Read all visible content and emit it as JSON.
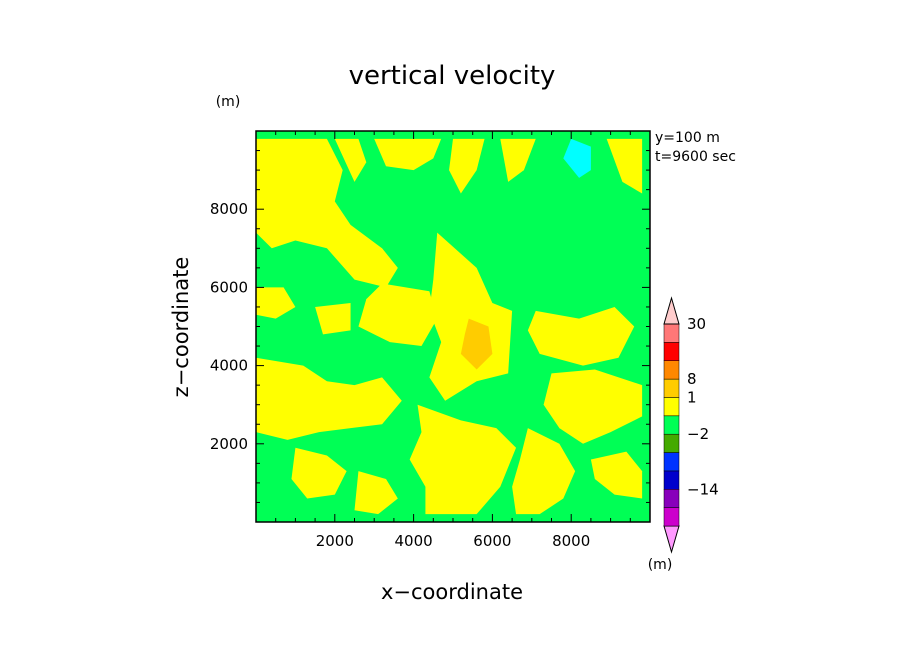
{
  "chart_data": {
    "type": "heatmap",
    "title": "vertical velocity",
    "xlabel": "x−coordinate",
    "ylabel": "z−coordinate",
    "x_unit": "(m)",
    "y_unit": "(m)",
    "colorbar_unit": "(m)",
    "xlim": [
      0,
      10000
    ],
    "ylim": [
      0,
      10000
    ],
    "x_ticks": [
      2000,
      4000,
      6000,
      8000
    ],
    "y_ticks": [
      2000,
      4000,
      6000,
      8000
    ],
    "annotations": [
      "y=100 m",
      "t=9600 sec"
    ],
    "colorbar": {
      "labels": [
        {
          "value": 30,
          "text": "30"
        },
        {
          "value": 8,
          "text": "8"
        },
        {
          "value": 1,
          "text": "1"
        },
        {
          "value": -2,
          "text": "−2"
        },
        {
          "value": -14,
          "text": "−14"
        }
      ],
      "colors": [
        "#ff99ff",
        "#cc00cc",
        "#8800bb",
        "#0000cc",
        "#0033ff",
        "#44aa00",
        "#00ff55",
        "#ffff00",
        "#ffcc00",
        "#ff8800",
        "#ff0000",
        "#ff7777",
        "#ffcccc"
      ]
    },
    "field_description": {
      "background_level_color": "#00ff55",
      "positive_level_color": "#ffff00",
      "max_level_color": "#ffcc00",
      "min_level_color": "#00ffff"
    },
    "regions": [
      {
        "level": "positive",
        "color": "#ffff00",
        "points": [
          [
            0,
            9800
          ],
          [
            1800,
            9800
          ],
          [
            2200,
            9000
          ],
          [
            2000,
            8200
          ],
          [
            2400,
            7600
          ],
          [
            3200,
            7000
          ],
          [
            3600,
            6500
          ],
          [
            3300,
            6000
          ],
          [
            2500,
            6200
          ],
          [
            1800,
            7000
          ],
          [
            1000,
            7200
          ],
          [
            400,
            7000
          ],
          [
            0,
            7400
          ]
        ]
      },
      {
        "level": "positive",
        "color": "#ffff00",
        "points": [
          [
            2000,
            9800
          ],
          [
            2600,
            9800
          ],
          [
            2800,
            9200
          ],
          [
            2500,
            8700
          ]
        ]
      },
      {
        "level": "positive",
        "color": "#ffff00",
        "points": [
          [
            3000,
            9800
          ],
          [
            4700,
            9800
          ],
          [
            4500,
            9300
          ],
          [
            4000,
            9000
          ],
          [
            3300,
            9100
          ]
        ]
      },
      {
        "level": "positive",
        "color": "#ffff00",
        "points": [
          [
            5000,
            9800
          ],
          [
            5800,
            9800
          ],
          [
            5600,
            9000
          ],
          [
            5200,
            8400
          ],
          [
            4900,
            9000
          ]
        ]
      },
      {
        "level": "positive",
        "color": "#ffff00",
        "points": [
          [
            6200,
            9800
          ],
          [
            7100,
            9800
          ],
          [
            6800,
            9000
          ],
          [
            6400,
            8700
          ]
        ]
      },
      {
        "level": "positive",
        "color": "#ffff00",
        "points": [
          [
            8900,
            9800
          ],
          [
            9800,
            9800
          ],
          [
            9800,
            8400
          ],
          [
            9300,
            8700
          ]
        ]
      },
      {
        "level": "positive",
        "color": "#ffff00",
        "points": [
          [
            4600,
            7400
          ],
          [
            5600,
            6500
          ],
          [
            6000,
            5600
          ],
          [
            6500,
            5400
          ],
          [
            6400,
            3800
          ],
          [
            5600,
            3600
          ],
          [
            4800,
            3100
          ],
          [
            4400,
            3700
          ],
          [
            4700,
            4600
          ],
          [
            4400,
            5400
          ],
          [
            4500,
            6200
          ]
        ]
      },
      {
        "level": "positive",
        "color": "#ffff00",
        "points": [
          [
            3200,
            6100
          ],
          [
            4400,
            5900
          ],
          [
            4600,
            5200
          ],
          [
            4200,
            4500
          ],
          [
            3400,
            4600
          ],
          [
            2600,
            5000
          ],
          [
            2800,
            5700
          ]
        ]
      },
      {
        "level": "positive",
        "color": "#ffff00",
        "points": [
          [
            0,
            6000
          ],
          [
            700,
            6000
          ],
          [
            1000,
            5500
          ],
          [
            500,
            5200
          ],
          [
            0,
            5300
          ]
        ]
      },
      {
        "level": "positive",
        "color": "#ffff00",
        "points": [
          [
            1500,
            5500
          ],
          [
            2400,
            5600
          ],
          [
            2400,
            4900
          ],
          [
            1700,
            4800
          ]
        ]
      },
      {
        "level": "positive",
        "color": "#ffff00",
        "points": [
          [
            0,
            4200
          ],
          [
            1200,
            4000
          ],
          [
            1800,
            3600
          ],
          [
            2500,
            3500
          ],
          [
            3200,
            3700
          ],
          [
            3700,
            3100
          ],
          [
            3200,
            2500
          ],
          [
            2400,
            2400
          ],
          [
            1600,
            2300
          ],
          [
            800,
            2100
          ],
          [
            0,
            2300
          ]
        ]
      },
      {
        "level": "positive",
        "color": "#ffff00",
        "points": [
          [
            4100,
            3000
          ],
          [
            5200,
            2600
          ],
          [
            6100,
            2400
          ],
          [
            6600,
            1900
          ],
          [
            6200,
            900
          ],
          [
            5600,
            200
          ],
          [
            4300,
            200
          ],
          [
            4300,
            900
          ],
          [
            3900,
            1600
          ],
          [
            4200,
            2300
          ]
        ]
      },
      {
        "level": "positive",
        "color": "#ffff00",
        "points": [
          [
            7100,
            5400
          ],
          [
            8200,
            5200
          ],
          [
            9100,
            5500
          ],
          [
            9600,
            5000
          ],
          [
            9200,
            4200
          ],
          [
            8300,
            4000
          ],
          [
            7200,
            4300
          ],
          [
            6900,
            4900
          ]
        ]
      },
      {
        "level": "positive",
        "color": "#ffff00",
        "points": [
          [
            7500,
            3800
          ],
          [
            8600,
            3900
          ],
          [
            9800,
            3500
          ],
          [
            9800,
            2700
          ],
          [
            9000,
            2300
          ],
          [
            8300,
            2000
          ],
          [
            7700,
            2400
          ],
          [
            7300,
            3000
          ]
        ]
      },
      {
        "level": "positive",
        "color": "#ffff00",
        "points": [
          [
            6900,
            2400
          ],
          [
            7700,
            2000
          ],
          [
            8100,
            1300
          ],
          [
            7800,
            600
          ],
          [
            7200,
            200
          ],
          [
            6600,
            200
          ],
          [
            6500,
            900
          ],
          [
            6700,
            1600
          ]
        ]
      },
      {
        "level": "positive",
        "color": "#ffff00",
        "points": [
          [
            8500,
            1600
          ],
          [
            9400,
            1800
          ],
          [
            9800,
            1300
          ],
          [
            9800,
            600
          ],
          [
            9100,
            700
          ],
          [
            8600,
            1100
          ]
        ]
      },
      {
        "level": "positive",
        "color": "#ffff00",
        "points": [
          [
            1000,
            1900
          ],
          [
            1800,
            1700
          ],
          [
            2300,
            1300
          ],
          [
            2000,
            700
          ],
          [
            1300,
            600
          ],
          [
            900,
            1100
          ]
        ]
      },
      {
        "level": "positive",
        "color": "#ffff00",
        "points": [
          [
            2600,
            1300
          ],
          [
            3300,
            1100
          ],
          [
            3600,
            600
          ],
          [
            3100,
            200
          ],
          [
            2500,
            300
          ]
        ]
      },
      {
        "level": "max",
        "color": "#ffcc00",
        "points": [
          [
            5400,
            5200
          ],
          [
            5900,
            5000
          ],
          [
            6000,
            4300
          ],
          [
            5600,
            3900
          ],
          [
            5200,
            4300
          ],
          [
            5300,
            4800
          ]
        ]
      },
      {
        "level": "min",
        "color": "#00ffff",
        "points": [
          [
            8000,
            9800
          ],
          [
            8500,
            9600
          ],
          [
            8500,
            9000
          ],
          [
            8200,
            8800
          ],
          [
            7800,
            9300
          ]
        ]
      }
    ]
  }
}
